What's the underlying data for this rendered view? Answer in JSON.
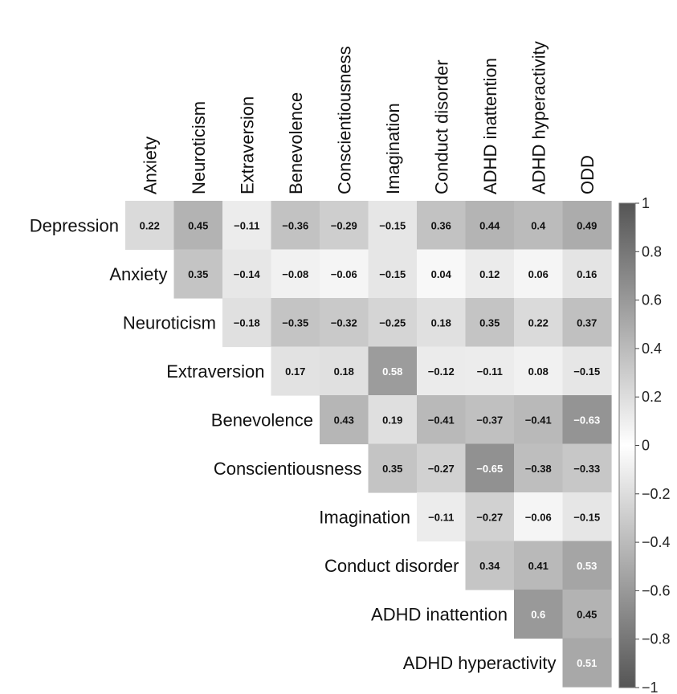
{
  "chart_data": {
    "type": "heatmap",
    "title": "",
    "rows": [
      "Depression",
      "Anxiety",
      "Neuroticism",
      "Extraversion",
      "Benevolence",
      "Conscientiousness",
      "Imagination",
      "Conduct disorder",
      "ADHD inattention",
      "ADHD hyperactivity"
    ],
    "columns": [
      "Anxiety",
      "Neuroticism",
      "Extraversion",
      "Benevolence",
      "Conscientiousness",
      "Imagination",
      "Conduct disorder",
      "ADHD inattention",
      "ADHD hyperactivity",
      "ODD"
    ],
    "values": [
      [
        0.22,
        0.45,
        -0.11,
        -0.36,
        -0.29,
        -0.15,
        0.36,
        0.44,
        0.4,
        0.49
      ],
      [
        null,
        0.35,
        -0.14,
        -0.08,
        -0.06,
        -0.15,
        0.04,
        0.12,
        0.06,
        0.16
      ],
      [
        null,
        null,
        -0.18,
        -0.35,
        -0.32,
        -0.25,
        0.18,
        0.35,
        0.22,
        0.37
      ],
      [
        null,
        null,
        null,
        0.17,
        0.18,
        0.58,
        -0.12,
        -0.11,
        0.08,
        -0.15
      ],
      [
        null,
        null,
        null,
        null,
        0.43,
        0.19,
        -0.41,
        -0.37,
        -0.41,
        -0.63
      ],
      [
        null,
        null,
        null,
        null,
        null,
        0.35,
        -0.27,
        -0.65,
        -0.38,
        -0.33
      ],
      [
        null,
        null,
        null,
        null,
        null,
        null,
        -0.11,
        -0.27,
        -0.06,
        -0.15
      ],
      [
        null,
        null,
        null,
        null,
        null,
        null,
        null,
        0.34,
        0.41,
        0.53
      ],
      [
        null,
        null,
        null,
        null,
        null,
        null,
        null,
        null,
        0.6,
        0.45
      ],
      [
        null,
        null,
        null,
        null,
        null,
        null,
        null,
        null,
        null,
        0.51
      ]
    ],
    "colorbar": {
      "range": [
        -1,
        1
      ],
      "ticks": [
        "1",
        "0.8",
        "0.6",
        "0.4",
        "0.2",
        "0",
        "−0.2",
        "−0.4",
        "−0.6",
        "−0.8",
        "−1"
      ],
      "colors": {
        "extreme": "#555555",
        "center": "#ffffff"
      }
    },
    "grid": false,
    "legend": "right"
  }
}
